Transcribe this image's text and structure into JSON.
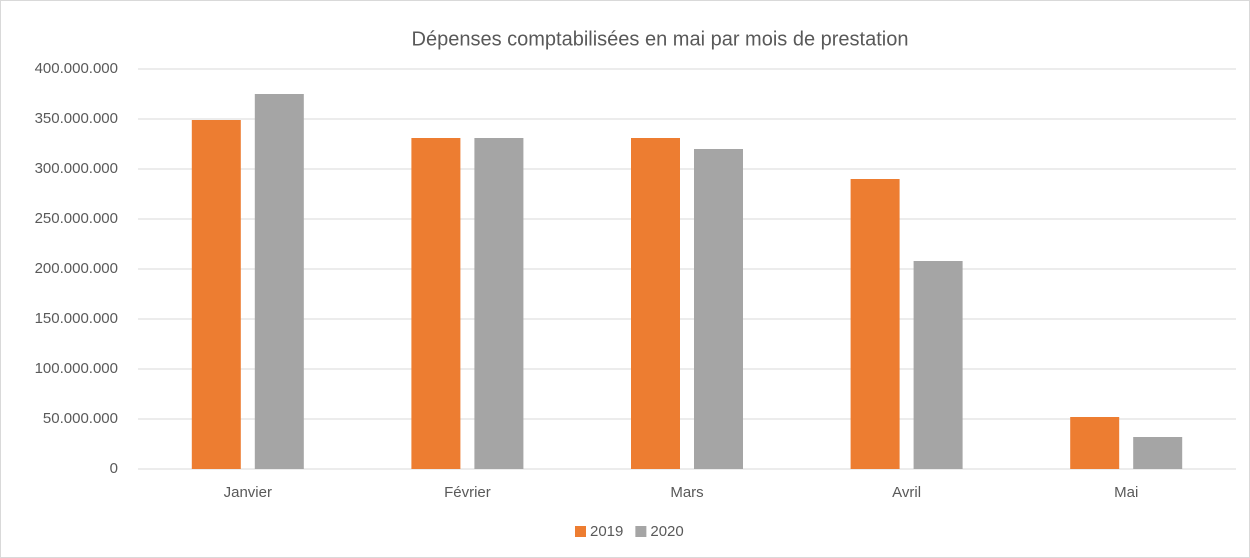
{
  "chart_data": {
    "type": "bar",
    "title": "Dépenses comptabilisées en mai par mois de prestation",
    "categories": [
      "Janvier",
      "Février",
      "Mars",
      "Avril",
      "Mai"
    ],
    "series": [
      {
        "name": "2019",
        "color": "#ed7d31",
        "values": [
          349000000,
          331000000,
          331000000,
          290000000,
          52000000
        ]
      },
      {
        "name": "2020",
        "color": "#a5a5a5",
        "values": [
          375000000,
          331000000,
          320000000,
          208000000,
          32000000
        ]
      }
    ],
    "ylim": [
      0,
      400000000
    ],
    "yticks": [
      0,
      {
        "value": 50000000,
        "label": "50.000.000"
      },
      {
        "value": 100000000,
        "label": "100.000.000"
      },
      {
        "value": 150000000,
        "label": "150.000.000"
      },
      {
        "value": 200000000,
        "label": "200.000.000"
      },
      {
        "value": 250000000,
        "label": "250.000.000"
      },
      {
        "value": 300000000,
        "label": "300.000.000"
      },
      {
        "value": 350000000,
        "label": "350.000.000"
      },
      {
        "value": 400000000,
        "label": "400.000.000"
      }
    ],
    "grid": true,
    "legend": "bottom"
  }
}
